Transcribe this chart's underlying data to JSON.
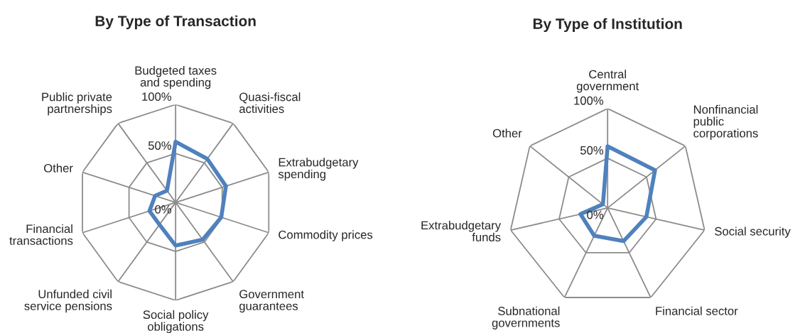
{
  "chart_data": [
    {
      "type": "radar",
      "title": "By Type of Transaction",
      "categories": [
        "Budgeted taxes\nand spending",
        "Quasi-fiscal\nactivities",
        "Extrabudgetary\nspending",
        "Commodity prices",
        "Government\nguarantees",
        "Social policy\nobligations",
        "Unfunded civil\nservice pensions",
        "Financial\ntransactions",
        "Other",
        "Public private\npartnerships"
      ],
      "series": [
        {
          "color": "#4f81bd",
          "values": [
            62,
            55,
            54,
            49,
            47,
            44,
            28,
            28,
            22,
            15
          ]
        }
      ],
      "ylim": [
        0,
        100
      ],
      "yticks": [
        {
          "value": 0,
          "label": "0%"
        },
        {
          "value": 50,
          "label": "50%"
        },
        {
          "value": 100,
          "label": "100%"
        }
      ],
      "grid": true,
      "marker": "none",
      "line_style": "solid"
    },
    {
      "type": "radar",
      "title": "By Type of Institution",
      "categories": [
        "Central\ngovernment",
        "Nonfinancial\npublic\ncorporations",
        "Social security",
        "Financial sector",
        "Subnational\ngovernments",
        "Extrabudgetary\nfunds",
        "Other"
      ],
      "series": [
        {
          "color": "#4f81bd",
          "values": [
            62,
            61,
            40,
            37,
            31,
            28,
            6
          ]
        }
      ],
      "ylim": [
        0,
        100
      ],
      "yticks": [
        {
          "value": 0,
          "label": "0%"
        },
        {
          "value": 50,
          "label": "50%"
        },
        {
          "value": 100,
          "label": "100%"
        }
      ],
      "grid": true,
      "marker": "none",
      "line_style": "solid"
    }
  ]
}
